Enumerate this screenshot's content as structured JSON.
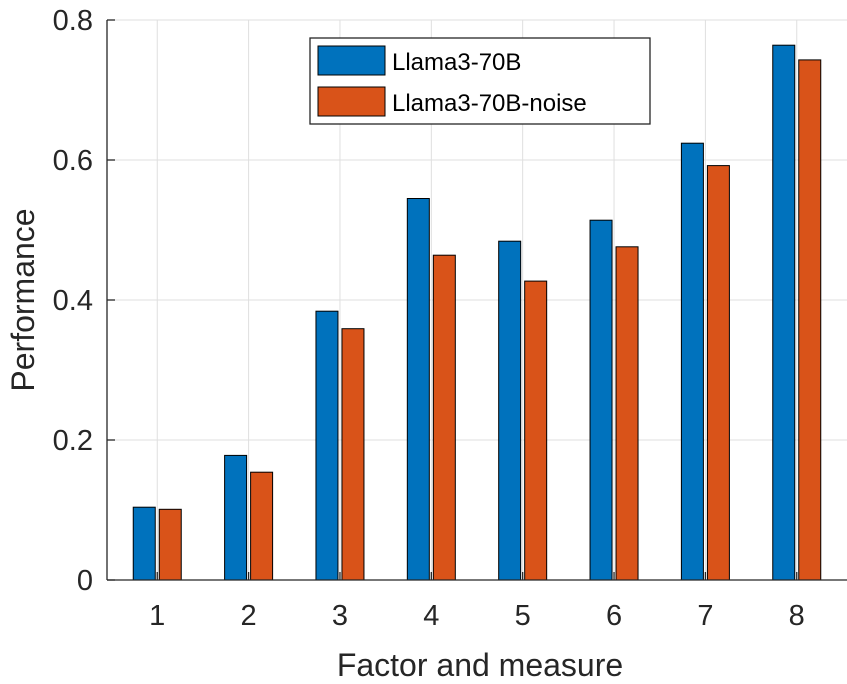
{
  "chart_data": {
    "type": "bar",
    "title": "",
    "xlabel": "Factor and measure",
    "ylabel": "Performance",
    "categories": [
      "1",
      "2",
      "3",
      "4",
      "5",
      "6",
      "7",
      "8"
    ],
    "series": [
      {
        "name": "Llama3-70B",
        "color": "#0072BD",
        "values": [
          0.104,
          0.178,
          0.384,
          0.545,
          0.484,
          0.514,
          0.624,
          0.764
        ]
      },
      {
        "name": "Llama3-70B-noise",
        "color": "#D95319",
        "values": [
          0.101,
          0.154,
          0.359,
          0.464,
          0.427,
          0.476,
          0.592,
          0.743
        ]
      }
    ],
    "ylim": [
      0,
      0.8
    ],
    "yticks": [
      0,
      0.2,
      0.4,
      0.6,
      0.8
    ],
    "ytick_labels": [
      "0",
      "0.2",
      "0.4",
      "0.6",
      "0.8"
    ],
    "grid": true,
    "legend_position": "top"
  }
}
